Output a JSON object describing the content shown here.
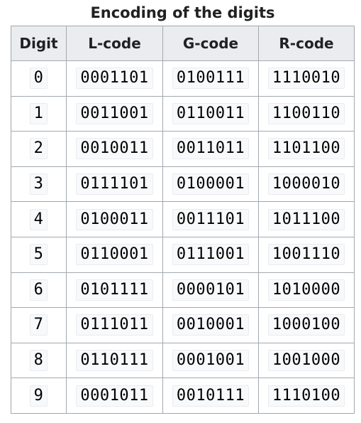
{
  "caption": "Encoding of the digits",
  "headers": [
    "Digit",
    "L-code",
    "G-code",
    "R-code"
  ],
  "rows": [
    [
      "0",
      "0001101",
      "0100111",
      "1110010"
    ],
    [
      "1",
      "0011001",
      "0110011",
      "1100110"
    ],
    [
      "2",
      "0010011",
      "0011011",
      "1101100"
    ],
    [
      "3",
      "0111101",
      "0100001",
      "1000010"
    ],
    [
      "4",
      "0100011",
      "0011101",
      "1011100"
    ],
    [
      "5",
      "0110001",
      "0111001",
      "1001110"
    ],
    [
      "6",
      "0101111",
      "0000101",
      "1010000"
    ],
    [
      "7",
      "0111011",
      "0010001",
      "1000100"
    ],
    [
      "8",
      "0110111",
      "0001001",
      "1001000"
    ],
    [
      "9",
      "0001011",
      "0010111",
      "1110100"
    ]
  ]
}
